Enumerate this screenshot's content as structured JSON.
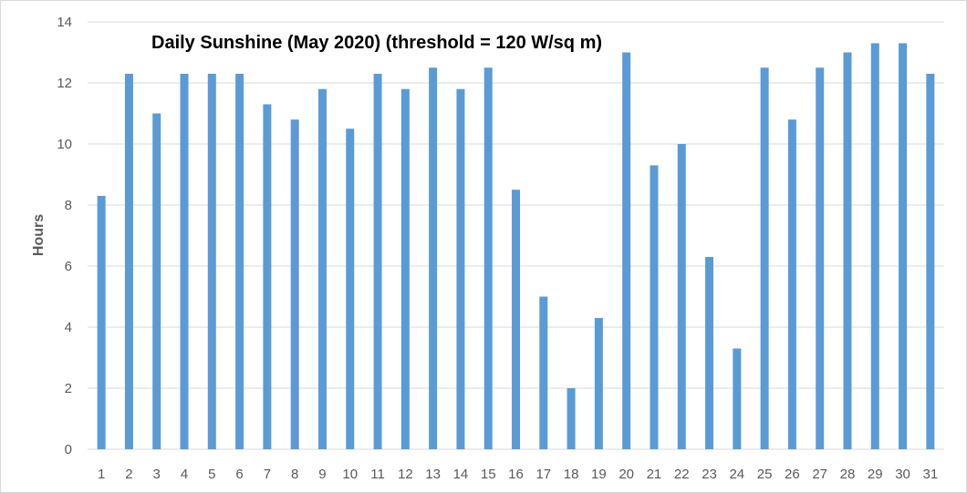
{
  "chart_data": {
    "type": "bar",
    "title": "Daily Sunshine (May 2020) (threshold = 120 W/sq m)",
    "xlabel": "",
    "ylabel": "Hours",
    "ylim": [
      0,
      14
    ],
    "yticks": [
      0,
      2,
      4,
      6,
      8,
      10,
      12,
      14
    ],
    "grid": true,
    "legend": "none",
    "bar_color": "#5b9bd5",
    "categories": [
      "1",
      "2",
      "3",
      "4",
      "5",
      "6",
      "7",
      "8",
      "9",
      "10",
      "11",
      "12",
      "13",
      "14",
      "15",
      "16",
      "17",
      "18",
      "19",
      "20",
      "21",
      "22",
      "23",
      "24",
      "25",
      "26",
      "27",
      "28",
      "29",
      "30",
      "31"
    ],
    "values": [
      8.3,
      12.3,
      11.0,
      12.3,
      12.3,
      12.3,
      11.3,
      10.8,
      11.8,
      10.5,
      12.3,
      11.8,
      12.5,
      11.8,
      12.5,
      8.5,
      5.0,
      2.0,
      4.3,
      13.0,
      9.3,
      10.0,
      6.3,
      3.3,
      12.5,
      10.8,
      12.5,
      13.0,
      13.3,
      13.3,
      12.3
    ]
  }
}
